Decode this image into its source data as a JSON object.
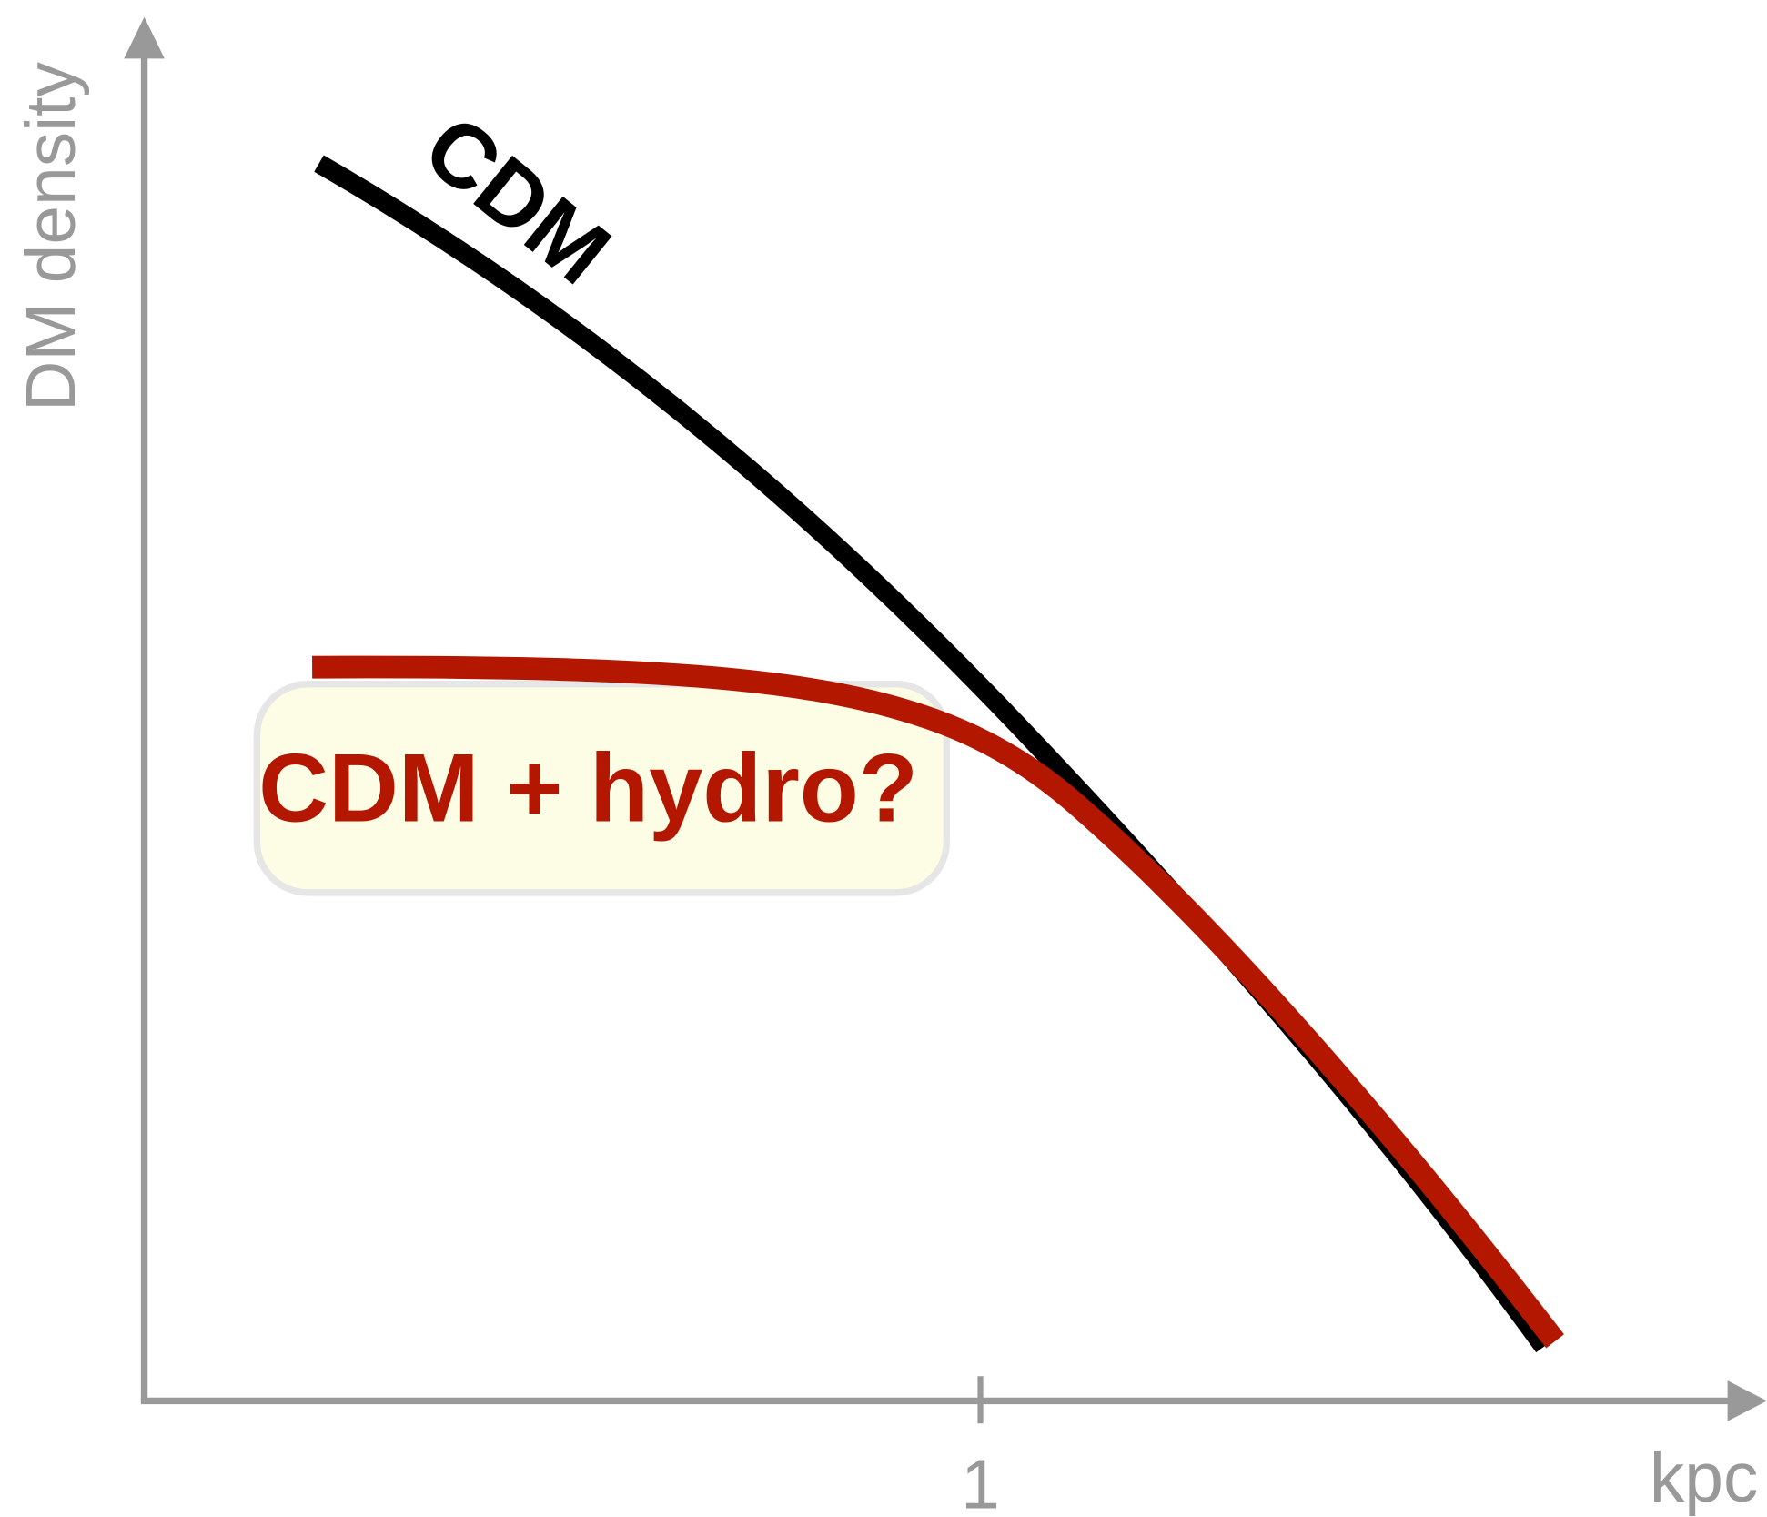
{
  "axes": {
    "y_label": "DM density",
    "x_label": "kpc",
    "x_tick": "1"
  },
  "curves": [
    {
      "label": "CDM"
    },
    {
      "label": "CDM + hydro?"
    }
  ]
}
